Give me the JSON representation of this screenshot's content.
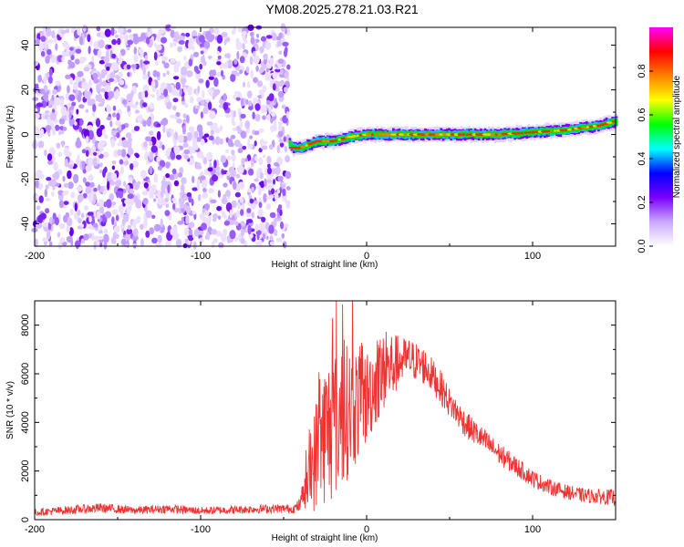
{
  "title": "YM08.2025.278.21.03.R21",
  "chart_data": [
    {
      "type": "heatmap",
      "title": "YM08.2025.278.21.03.R21",
      "xlabel": "Height of straight line (km)",
      "ylabel": "Frequency (Hz)",
      "xlim": [
        -200,
        150
      ],
      "ylim": [
        -50,
        48
      ],
      "xticks": [
        -200,
        -100,
        0,
        100
      ],
      "yticks": [
        -40,
        -20,
        0,
        20,
        40
      ],
      "x_tick_labels": [
        "-200",
        "-100",
        "0",
        "100"
      ],
      "y_tick_labels": [
        "-40",
        "-20",
        "0",
        "20",
        "40"
      ],
      "noise_region_x": [
        -200,
        -47
      ],
      "signal_track": {
        "x": [
          -47,
          -45,
          -40,
          -35,
          -30,
          -20,
          -10,
          0,
          10,
          20,
          40,
          60,
          80,
          100,
          120,
          140,
          150
        ],
        "freq": [
          -4,
          -6,
          -6,
          -4.5,
          -3,
          -3,
          -1,
          0,
          0,
          0,
          0,
          0,
          0,
          1,
          2,
          4,
          6
        ]
      },
      "colorbar": {
        "label": "Normalized spectral amplitude",
        "range": [
          0,
          1
        ],
        "ticks": [
          "0.0",
          "0.2",
          "0.4",
          "0.6",
          "0.8"
        ],
        "colors": [
          "#ffffff",
          "#c9a8ff",
          "#7a00ff",
          "#0000ff",
          "#00ffff",
          "#00ff00",
          "#ffff00",
          "#ff8000",
          "#ff0000",
          "#ff00ff"
        ]
      }
    },
    {
      "type": "line",
      "xlabel": "Height of straight line (km)",
      "ylabel": "SNR (10 * v/v)",
      "xlim": [
        -200,
        150
      ],
      "ylim": [
        0,
        9000
      ],
      "xticks": [
        -200,
        -100,
        0,
        100
      ],
      "yticks": [
        0,
        2000,
        4000,
        6000,
        8000
      ],
      "x_tick_labels": [
        "-200",
        "-100",
        "0",
        "100"
      ],
      "y_tick_labels": [
        "0",
        "2000",
        "4000",
        "6000",
        "8000"
      ],
      "color": "#ee3333",
      "envelope": {
        "x": [
          -200,
          -160,
          -140,
          -120,
          -100,
          -60,
          -44,
          -40,
          -35,
          -30,
          -25,
          -20,
          -15,
          -10,
          -5,
          0,
          5,
          10,
          15,
          20,
          25,
          30,
          35,
          40,
          45,
          50,
          60,
          70,
          80,
          90,
          100,
          110,
          120,
          130,
          140,
          150
        ],
        "mean": [
          300,
          480,
          380,
          450,
          360,
          450,
          450,
          600,
          1500,
          2800,
          3600,
          3900,
          4300,
          4500,
          4800,
          5000,
          5600,
          6000,
          6300,
          6500,
          6600,
          6500,
          6300,
          5900,
          5400,
          4800,
          3900,
          3300,
          2700,
          2200,
          1700,
          1350,
          1150,
          1000,
          950,
          900
        ],
        "spread": [
          150,
          200,
          160,
          180,
          160,
          180,
          180,
          300,
          1200,
          2500,
          3000,
          3200,
          3000,
          2700,
          2400,
          2000,
          1800,
          1600,
          1500,
          1000,
          900,
          800,
          800,
          700,
          700,
          600,
          550,
          500,
          450,
          400,
          350,
          320,
          300,
          300,
          300,
          350
        ]
      }
    }
  ]
}
